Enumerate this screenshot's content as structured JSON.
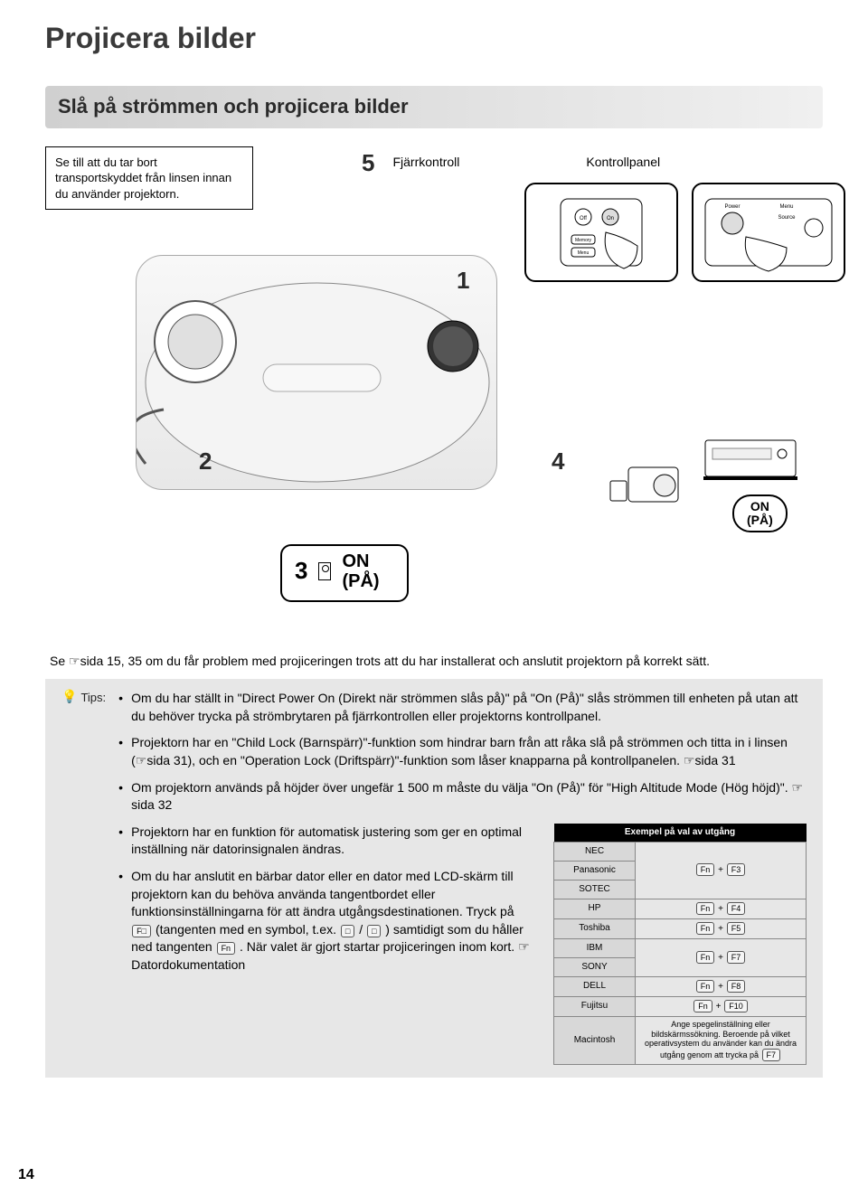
{
  "page_number": "14",
  "headings": {
    "main": "Projicera bilder",
    "sub": "Slå på strömmen och projicera bilder"
  },
  "lens_note": "Se till att du tar bort transportskyddet från linsen innan du använder projektorn.",
  "steps": {
    "s1": "1",
    "s2": "2",
    "s3": "3",
    "s3_text": "ON\n(PÅ)",
    "s4": "4",
    "s5": "5",
    "s5_remote": "Fjärrkontroll",
    "s5_panel": "Kontrollpanel",
    "on_pa": "ON\n(PÅ)"
  },
  "cross_ref": "Se ☞sida 15, 35 om du får problem med projiceringen trots att du har installerat och anslutit projektorn på korrekt sätt.",
  "tips_label": "Tips:",
  "tips": {
    "b1": "Om du har ställt in \"Direct Power On (Direkt när strömmen slås på)\" på \"On (På)\" slås strömmen till enheten på utan att du behöver trycka på strömbrytaren på fjärrkontrollen eller projektorns kontrollpanel.",
    "b2": "Projektorn har en \"Child Lock (Barnspärr)\"-funktion som hindrar barn från att råka slå på strömmen och titta in i linsen (☞sida 31), och en \"Operation Lock (Driftspärr)\"-funktion som låser knapparna på kontrollpanelen. ☞sida 31",
    "b3": "Om projektorn används på höjder över ungefär 1 500 m måste du välja \"On (På)\" för \"High Altitude Mode (Hög höjd)\". ☞sida 32",
    "b4": "Projektorn har en funktion för automatisk justering som ger en optimal inställning när datorinsignalen ändras.",
    "b5_pre": "Om du har anslutit en bärbar dator eller en dator med LCD-skärm till projektorn kan du behöva använda tangentbordet eller funktionsinställningarna för att ändra utgångsdestinationen. Tryck på ",
    "b5_mid": " (tangenten med en symbol, t.ex. ",
    "b5_mid2": " / ",
    "b5_post": ") samtidigt som du håller ned tangenten ",
    "b5_end": ". När valet är gjort startar projiceringen inom kort. ☞Datordokumentation"
  },
  "keys": {
    "fx": "F□",
    "monitor1": "□",
    "monitor2": "□",
    "fn": "Fn"
  },
  "output_table": {
    "header": "Exempel på val av utgång",
    "rows": [
      {
        "brand": "NEC",
        "keys": [
          "Fn",
          "F3"
        ],
        "rowspan": 3
      },
      {
        "brand": "Panasonic"
      },
      {
        "brand": "SOTEC"
      },
      {
        "brand": "HP",
        "keys": [
          "Fn",
          "F4"
        ],
        "rowspan": 1
      },
      {
        "brand": "Toshiba",
        "keys": [
          "Fn",
          "F5"
        ],
        "rowspan": 1
      },
      {
        "brand": "IBM",
        "keys": [
          "Fn",
          "F7"
        ],
        "rowspan": 2
      },
      {
        "brand": "SONY"
      },
      {
        "brand": "DELL",
        "keys": [
          "Fn",
          "F8"
        ],
        "rowspan": 1
      },
      {
        "brand": "Fujitsu",
        "keys": [
          "Fn",
          "F10"
        ],
        "rowspan": 1
      },
      {
        "brand": "Macintosh",
        "mac_note": "Ange spegelinställning eller bildskärmssökning. Beroende på vilket operativsystem du använder kan du ändra utgång genom att trycka på",
        "mac_key": "F7"
      }
    ]
  },
  "colors": {
    "bg": "#ffffff",
    "text": "#000000",
    "heading": "#3a3a3a",
    "subheading_bg_start": "#d0d0d0",
    "subheading_bg_end": "#f0f0f0",
    "tips_bg": "#e7e7e7",
    "table_header_bg": "#000000",
    "table_header_fg": "#ffffff",
    "table_brand_bg": "#d8d8d8",
    "border": "#888888"
  },
  "typography": {
    "main_heading_pt": 32,
    "sub_heading_pt": 22,
    "body_pt": 14,
    "table_pt": 10,
    "step_num_pt": 26
  }
}
